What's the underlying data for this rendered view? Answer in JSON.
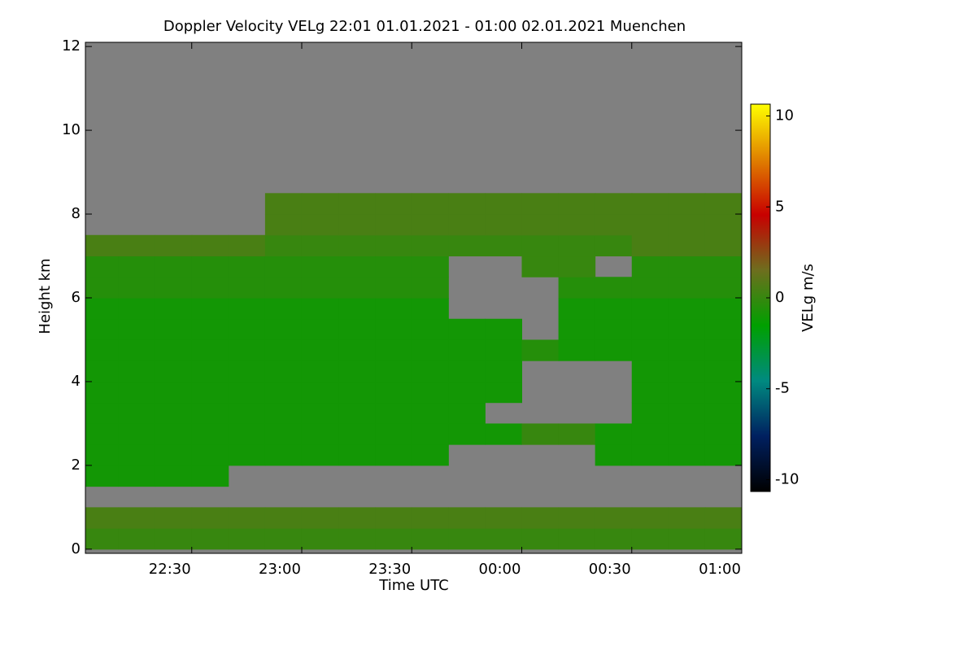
{
  "chart_data": {
    "type": "heatmap",
    "title": "Doppler Velocity VELg   22:01 01.01.2021 - 01:00 02.01.2021 Muenchen",
    "xlabel": "Time UTC",
    "ylabel": "Height km",
    "colorbar_label": "VELg m/s",
    "xlim": [
      22.0167,
      25.0
    ],
    "xticks": [
      {
        "value": 22.5,
        "label": "22:30"
      },
      {
        "value": 23.0,
        "label": "23:00"
      },
      {
        "value": 23.5,
        "label": "23:30"
      },
      {
        "value": 24.0,
        "label": "00:00"
      },
      {
        "value": 24.5,
        "label": "00:30"
      },
      {
        "value": 25.0,
        "label": "01:00"
      }
    ],
    "ylim": [
      -0.1,
      12.1
    ],
    "yticks": [
      0,
      2,
      4,
      6,
      8,
      10,
      12
    ],
    "zlim": [
      -10.65,
      10.65
    ],
    "zticks": [
      -10,
      -5,
      0,
      5,
      10
    ],
    "colorscale": [
      "#000000",
      "#002060",
      "#008a80",
      "#00a000",
      "#6e6e1e",
      "#c80000",
      "#e08000",
      "#ffff00"
    ],
    "no_data_color": "#808080",
    "x_bins": [
      22.0167,
      22.1667,
      22.3333,
      22.5,
      22.6667,
      22.8333,
      23.0,
      23.1667,
      23.3333,
      23.5,
      23.6667,
      23.8333,
      24.0,
      24.1667,
      24.3333,
      24.5,
      24.6667,
      24.8333,
      25.0
    ],
    "y_bins": [
      0,
      0.5,
      1,
      1.5,
      2,
      2.5,
      3,
      3.5,
      4,
      4.5,
      5,
      5.5,
      6,
      6.5,
      7,
      7.5,
      8,
      8.5,
      9,
      9.5,
      10,
      10.5,
      11,
      11.5,
      12
    ],
    "z": [
      [
        0,
        0,
        0,
        0,
        0,
        0,
        0,
        0,
        0,
        0,
        0,
        0,
        0,
        0,
        0,
        0,
        0,
        0
      ],
      [
        0.5,
        0.5,
        0.5,
        0.5,
        0.5,
        0.5,
        0.5,
        0.5,
        0.5,
        0.5,
        0.5,
        0.5,
        0.5,
        0.5,
        0.5,
        0.5,
        0.5,
        0.5
      ],
      [
        null,
        null,
        null,
        null,
        null,
        null,
        null,
        null,
        null,
        null,
        null,
        null,
        null,
        null,
        null,
        null,
        null,
        null
      ],
      [
        -1,
        -1,
        -1,
        -1,
        null,
        null,
        null,
        null,
        null,
        null,
        null,
        null,
        null,
        null,
        null,
        null,
        null,
        null
      ],
      [
        -1,
        -1,
        -1,
        -1,
        -1,
        -1,
        -1,
        -1,
        -1,
        -1,
        null,
        null,
        null,
        null,
        -1,
        -1,
        -1,
        -1
      ],
      [
        -1,
        -1,
        -1,
        -1,
        -1,
        -1,
        -1,
        -1,
        -1,
        -1,
        -1,
        -1,
        0,
        0,
        -1,
        -1,
        -1,
        -1
      ],
      [
        -1,
        -1,
        -1,
        -1,
        -1,
        -1,
        -1,
        -1,
        -1,
        -1,
        -1,
        null,
        null,
        null,
        null,
        -1,
        -1,
        -1
      ],
      [
        -1,
        -1,
        -1,
        -1,
        -1,
        -1,
        -1,
        -1,
        -1,
        -1,
        -1,
        -1,
        null,
        null,
        null,
        -1,
        -1,
        -1
      ],
      [
        -1,
        -1,
        -1,
        -1,
        -1,
        -1,
        -1,
        -1,
        -1,
        -1,
        -1,
        -1,
        null,
        null,
        null,
        -1,
        -1,
        -1
      ],
      [
        -1,
        -1,
        -1,
        -1,
        -1,
        -1,
        -1,
        -1,
        -1,
        -1,
        -1,
        -1,
        -0.5,
        -1,
        -1,
        -1,
        -1,
        -1
      ],
      [
        -1,
        -1,
        -1,
        -1,
        -1,
        -1,
        -1,
        -1,
        -1,
        -1,
        -1,
        -1,
        null,
        -1,
        -1,
        -1,
        -1,
        -1
      ],
      [
        -1,
        -1,
        -1,
        -1,
        -1,
        -1,
        -1,
        -1,
        -1,
        -1,
        null,
        null,
        null,
        -1,
        -1,
        -1,
        -1,
        -1
      ],
      [
        -0.5,
        -0.5,
        -0.5,
        -0.5,
        -0.5,
        -0.5,
        -0.5,
        -0.5,
        -0.5,
        -0.5,
        null,
        null,
        null,
        -0.5,
        -0.5,
        -0.5,
        -0.5,
        -0.5
      ],
      [
        -0.5,
        -0.5,
        -0.5,
        -0.5,
        -0.5,
        -0.5,
        -0.5,
        -0.5,
        -0.5,
        -0.5,
        null,
        null,
        0,
        0,
        null,
        -0.5,
        -0.5,
        -0.5
      ],
      [
        0.5,
        0.5,
        0.5,
        0.5,
        0.5,
        0,
        0,
        0,
        0,
        0,
        0,
        0,
        0,
        0,
        0,
        0.5,
        0.5,
        0.5
      ],
      [
        null,
        null,
        null,
        null,
        null,
        0.5,
        0.5,
        0.5,
        0.5,
        0.5,
        0.5,
        0.5,
        0.5,
        0.5,
        0.5,
        0.5,
        0.5,
        0.5
      ],
      [
        null,
        null,
        null,
        null,
        null,
        0.5,
        0.5,
        0.5,
        0.5,
        0.5,
        0.5,
        0.5,
        0.5,
        0.5,
        0.5,
        0.5,
        0.5,
        0.5
      ],
      [
        null,
        null,
        null,
        null,
        null,
        null,
        null,
        null,
        null,
        null,
        null,
        null,
        null,
        null,
        null,
        null,
        null,
        null
      ],
      [
        null,
        null,
        null,
        null,
        null,
        null,
        null,
        null,
        null,
        null,
        null,
        null,
        null,
        null,
        null,
        null,
        null,
        null
      ],
      [
        null,
        null,
        null,
        null,
        null,
        null,
        null,
        null,
        null,
        null,
        null,
        null,
        null,
        null,
        null,
        null,
        null,
        null
      ],
      [
        null,
        null,
        null,
        null,
        null,
        null,
        null,
        null,
        null,
        null,
        null,
        null,
        null,
        null,
        null,
        null,
        null,
        null
      ],
      [
        null,
        null,
        null,
        null,
        null,
        null,
        null,
        null,
        null,
        null,
        null,
        null,
        null,
        null,
        null,
        null,
        null,
        null
      ],
      [
        null,
        null,
        null,
        null,
        null,
        null,
        null,
        null,
        null,
        null,
        null,
        null,
        null,
        null,
        null,
        null,
        null,
        null
      ],
      [
        null,
        null,
        null,
        null,
        null,
        null,
        null,
        null,
        null,
        null,
        null,
        null,
        null,
        null,
        null,
        null,
        null,
        null
      ]
    ]
  }
}
